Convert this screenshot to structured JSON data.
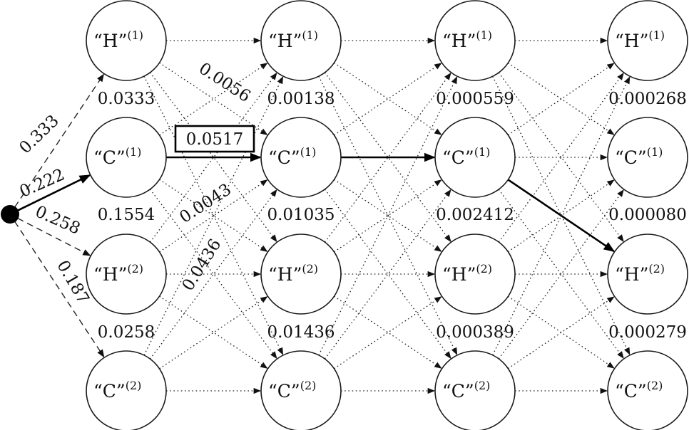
{
  "columns": [
    {
      "nodes": [
        {
          "state": "“H”",
          "sup": "(1)"
        },
        {
          "state": "“C”",
          "sup": "(1)"
        },
        {
          "state": "“H”",
          "sup": "(2)"
        },
        {
          "state": "“C”",
          "sup": "(2)"
        }
      ]
    },
    {
      "nodes": [
        {
          "state": "“H”",
          "sup": "(1)"
        },
        {
          "state": "“C”",
          "sup": "(1)"
        },
        {
          "state": "“H”",
          "sup": "(2)"
        },
        {
          "state": "“C”",
          "sup": "(2)"
        }
      ]
    },
    {
      "nodes": [
        {
          "state": "“H”",
          "sup": "(1)"
        },
        {
          "state": "“C”",
          "sup": "(1)"
        },
        {
          "state": "“H”",
          "sup": "(2)"
        },
        {
          "state": "“C”",
          "sup": "(2)"
        }
      ]
    },
    {
      "nodes": [
        {
          "state": "“H”",
          "sup": "(1)"
        },
        {
          "state": "“C”",
          "sup": "(1)"
        },
        {
          "state": "“H”",
          "sup": "(2)"
        },
        {
          "state": "“C”",
          "sup": "(2)"
        }
      ]
    }
  ],
  "probabilities": [
    [
      "0.0333",
      "0.1554",
      "0.0258"
    ],
    [
      "0.00138",
      "0.01035",
      "0.01436"
    ],
    [
      "0.000559",
      "0.002412",
      "0.000389"
    ],
    [
      "0.000268",
      "0.000080",
      "0.000279"
    ]
  ],
  "initial_weights": [
    "0.333",
    "0.222",
    "0.258",
    "0.187"
  ],
  "transition_weights": [
    "0.0056",
    "0.0517",
    "0.0043",
    "0.0436"
  ],
  "best_path": [
    {
      "from": "start",
      "to": [
        0,
        1
      ]
    },
    {
      "from": [
        0,
        1
      ],
      "to": [
        1,
        1
      ]
    },
    {
      "from": [
        1,
        1
      ],
      "to": [
        2,
        1
      ]
    },
    {
      "from": [
        2,
        1
      ],
      "to": [
        3,
        2
      ]
    }
  ],
  "highlighted_weight": "0.0517"
}
